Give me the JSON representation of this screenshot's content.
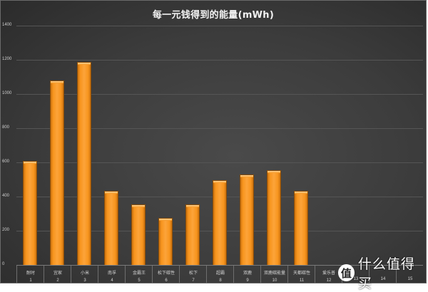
{
  "chart_data": {
    "type": "bar",
    "title": "每一元钱得到的能量(mWh)",
    "xlabel": "",
    "ylabel": "",
    "ylim": [
      0,
      1400
    ],
    "yticks": [
      0,
      200,
      400,
      600,
      800,
      1000,
      1200,
      1400
    ],
    "grid": true,
    "legend": null,
    "categories": [
      "耐时",
      "宜家",
      "小米",
      "南孚",
      "金霸王",
      "松下碳性",
      "松下",
      "超霸",
      "双鹿",
      "双鹿碳能量",
      "天都碳性",
      "爱乐普",
      "",
      "",
      ""
    ],
    "category_numbers": [
      "1",
      "2",
      "3",
      "4",
      "5",
      "6",
      "7",
      "8",
      "9",
      "10",
      "11",
      "12",
      "13",
      "14",
      "15"
    ],
    "values": [
      605,
      1075,
      1185,
      430,
      348,
      272,
      352,
      490,
      527,
      548,
      428,
      null,
      null,
      null,
      null
    ],
    "bar_color": "#f7941d",
    "background_color": "#3e3e3e"
  },
  "watermark": {
    "logo": "值",
    "text": "什么值得买"
  }
}
